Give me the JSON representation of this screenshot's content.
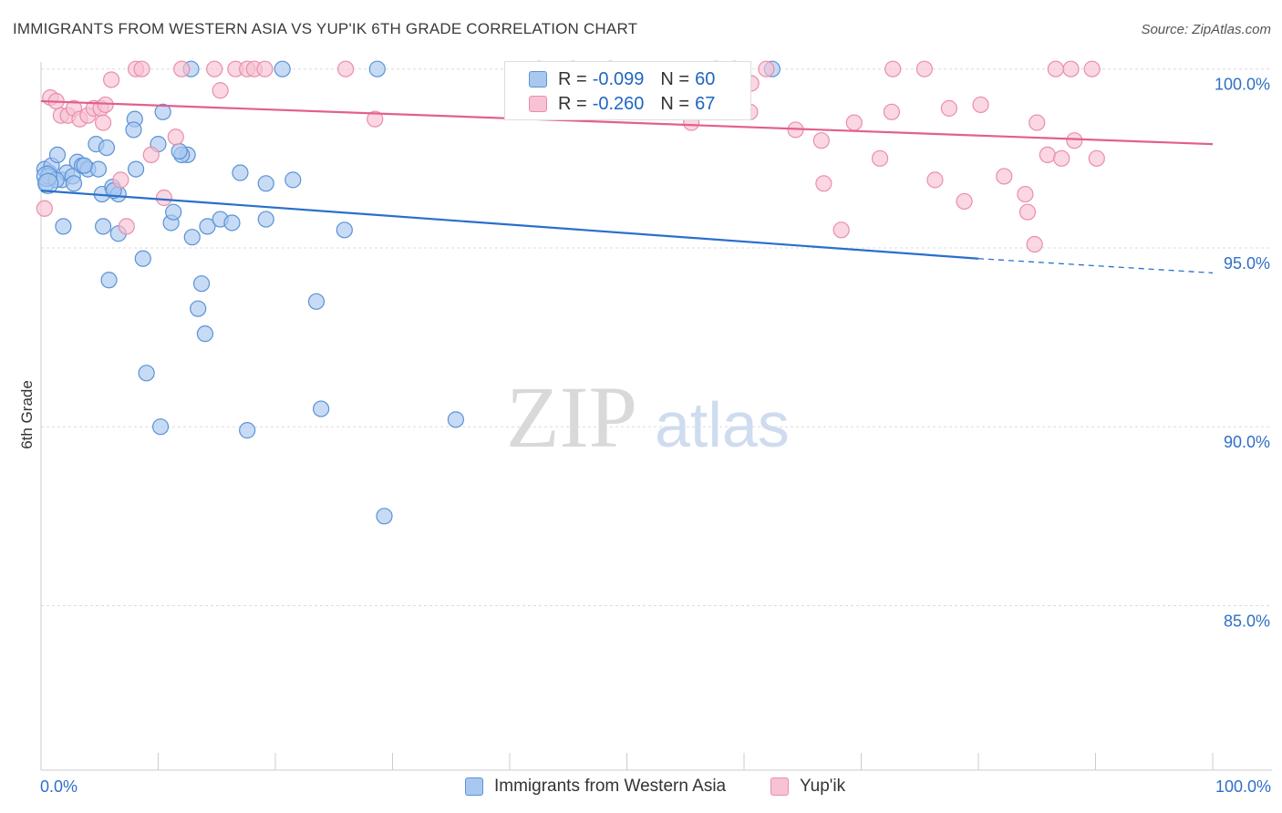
{
  "title": "IMMIGRANTS FROM WESTERN ASIA VS YUP'IK 6TH GRADE CORRELATION CHART",
  "source": "Source: ZipAtlas.com",
  "watermark": {
    "zip": "ZIP",
    "atlas": "atlas"
  },
  "legend": {
    "series1": {
      "r_label": "R =",
      "r_value": "-0.099",
      "n_label": "N =",
      "n_value": "60"
    },
    "series2": {
      "r_label": "R =",
      "r_value": "-0.260",
      "n_label": "N =",
      "n_value": "67"
    }
  },
  "bottom_legend": {
    "series1": "Immigrants from Western Asia",
    "series2": "Yup'ik"
  },
  "colors": {
    "blue_fill": "#a9c8ef",
    "blue_stroke": "#5b92d6",
    "blue_line": "#2a6fcc",
    "pink_fill": "#f7c2d3",
    "pink_stroke": "#ea8eaa",
    "pink_line": "#e2608d",
    "axis_text": "#2f6fc7",
    "grid": "#dcdcdc"
  },
  "chart_data": {
    "type": "scatter",
    "title": "IMMIGRANTS FROM WESTERN ASIA VS YUP'IK 6TH GRADE CORRELATION CHART",
    "xlabel": "",
    "ylabel": "6th Grade",
    "xlim": [
      0,
      100
    ],
    "ylim": [
      80.4,
      100.4
    ],
    "x_ticks": [
      0,
      10,
      20,
      30,
      40,
      50,
      60,
      70,
      80,
      90,
      100
    ],
    "x_tick_labels": [
      "0.0%",
      "100.0%"
    ],
    "y_ticks": [
      85,
      90,
      95,
      100
    ],
    "y_tick_labels": [
      "85.0%",
      "90.0%",
      "95.0%",
      "100.0%"
    ],
    "grid": true,
    "legend_position": "top-center",
    "series": [
      {
        "name": "Immigrants from Western Asia",
        "R": -0.099,
        "N": 60,
        "trend": {
          "x0": 0,
          "y0": 96.6,
          "x1": 80,
          "y1": 94.7,
          "dashed_to": 100,
          "dashed_y": 94.3
        },
        "points": [
          [
            0.3,
            97.2
          ],
          [
            0.5,
            96.8
          ],
          [
            0.7,
            97.1
          ],
          [
            0.9,
            97.3
          ],
          [
            1.4,
            97.6
          ],
          [
            1.8,
            96.9
          ],
          [
            2.2,
            97.1
          ],
          [
            2.7,
            97.0
          ],
          [
            3.1,
            97.4
          ],
          [
            3.5,
            97.3
          ],
          [
            4.0,
            97.2
          ],
          [
            4.7,
            97.9
          ],
          [
            1.9,
            95.6
          ],
          [
            5.2,
            96.5
          ],
          [
            5.6,
            97.8
          ],
          [
            6.1,
            96.7
          ],
          [
            6.6,
            96.5
          ],
          [
            8.0,
            98.6
          ],
          [
            7.9,
            98.3
          ],
          [
            10.4,
            98.8
          ],
          [
            10.0,
            97.9
          ],
          [
            12.5,
            97.6
          ],
          [
            11.1,
            95.7
          ],
          [
            11.3,
            96.0
          ],
          [
            12.0,
            97.6
          ],
          [
            12.9,
            95.3
          ],
          [
            14.2,
            95.6
          ],
          [
            15.3,
            95.8
          ],
          [
            16.3,
            95.7
          ],
          [
            17.0,
            97.1
          ],
          [
            19.2,
            95.8
          ],
          [
            19.2,
            96.8
          ],
          [
            21.5,
            96.9
          ],
          [
            25.9,
            95.5
          ],
          [
            5.3,
            95.6
          ],
          [
            6.6,
            95.4
          ],
          [
            6.2,
            96.6
          ],
          [
            8.7,
            94.7
          ],
          [
            5.8,
            94.1
          ],
          [
            13.7,
            94.0
          ],
          [
            13.4,
            93.3
          ],
          [
            23.5,
            93.5
          ],
          [
            14.0,
            92.6
          ],
          [
            9.0,
            91.5
          ],
          [
            10.2,
            90.0
          ],
          [
            17.6,
            89.9
          ],
          [
            23.9,
            90.5
          ],
          [
            35.4,
            90.2
          ],
          [
            29.3,
            87.5
          ],
          [
            12.8,
            100.0
          ],
          [
            20.6,
            100.0
          ],
          [
            28.7,
            100.0
          ],
          [
            62.4,
            100.0
          ],
          [
            4.9,
            97.2
          ],
          [
            2.8,
            96.8
          ],
          [
            3.7,
            97.3
          ],
          [
            0.6,
            97.0
          ],
          [
            11.8,
            97.7
          ],
          [
            8.1,
            97.2
          ],
          [
            1.3,
            96.9
          ]
        ]
      },
      {
        "name": "Yup'ik",
        "R": -0.26,
        "N": 67,
        "trend": {
          "x0": 0,
          "y0": 99.1,
          "x1": 100,
          "y1": 97.9
        },
        "points": [
          [
            0.3,
            96.1
          ],
          [
            0.8,
            99.2
          ],
          [
            1.3,
            99.1
          ],
          [
            1.7,
            98.7
          ],
          [
            2.3,
            98.7
          ],
          [
            2.8,
            98.9
          ],
          [
            3.3,
            98.6
          ],
          [
            4.0,
            98.7
          ],
          [
            4.5,
            98.9
          ],
          [
            5.1,
            98.9
          ],
          [
            5.5,
            99.0
          ],
          [
            5.3,
            98.5
          ],
          [
            6.0,
            99.7
          ],
          [
            6.8,
            96.9
          ],
          [
            7.3,
            95.6
          ],
          [
            8.1,
            100.0
          ],
          [
            8.6,
            100.0
          ],
          [
            9.4,
            97.6
          ],
          [
            10.5,
            96.4
          ],
          [
            11.5,
            98.1
          ],
          [
            12.0,
            100.0
          ],
          [
            14.8,
            100.0
          ],
          [
            15.3,
            99.4
          ],
          [
            16.6,
            100.0
          ],
          [
            17.6,
            100.0
          ],
          [
            18.2,
            100.0
          ],
          [
            19.1,
            100.0
          ],
          [
            26.0,
            100.0
          ],
          [
            28.5,
            98.6
          ],
          [
            42.5,
            100.0
          ],
          [
            45.4,
            100.0
          ],
          [
            46.3,
            99.6
          ],
          [
            48.6,
            100.0
          ],
          [
            50.9,
            99.4
          ],
          [
            52.1,
            99.5
          ],
          [
            53.0,
            99.4
          ],
          [
            55.5,
            98.5
          ],
          [
            57.6,
            100.0
          ],
          [
            59.2,
            100.0
          ],
          [
            60.6,
            99.6
          ],
          [
            60.5,
            98.8
          ],
          [
            61.9,
            100.0
          ],
          [
            64.4,
            98.3
          ],
          [
            66.6,
            98.0
          ],
          [
            66.8,
            96.8
          ],
          [
            68.3,
            95.5
          ],
          [
            69.4,
            98.5
          ],
          [
            71.6,
            97.5
          ],
          [
            72.6,
            98.8
          ],
          [
            72.7,
            100.0
          ],
          [
            75.4,
            100.0
          ],
          [
            76.3,
            96.9
          ],
          [
            77.5,
            98.9
          ],
          [
            78.8,
            96.3
          ],
          [
            80.2,
            99.0
          ],
          [
            82.2,
            97.0
          ],
          [
            84.0,
            96.5
          ],
          [
            84.2,
            96.0
          ],
          [
            84.8,
            95.1
          ],
          [
            85.0,
            98.5
          ],
          [
            85.9,
            97.6
          ],
          [
            86.6,
            100.0
          ],
          [
            87.1,
            97.5
          ],
          [
            87.9,
            100.0
          ],
          [
            88.2,
            98.0
          ],
          [
            89.7,
            100.0
          ],
          [
            90.1,
            97.5
          ]
        ]
      }
    ]
  }
}
